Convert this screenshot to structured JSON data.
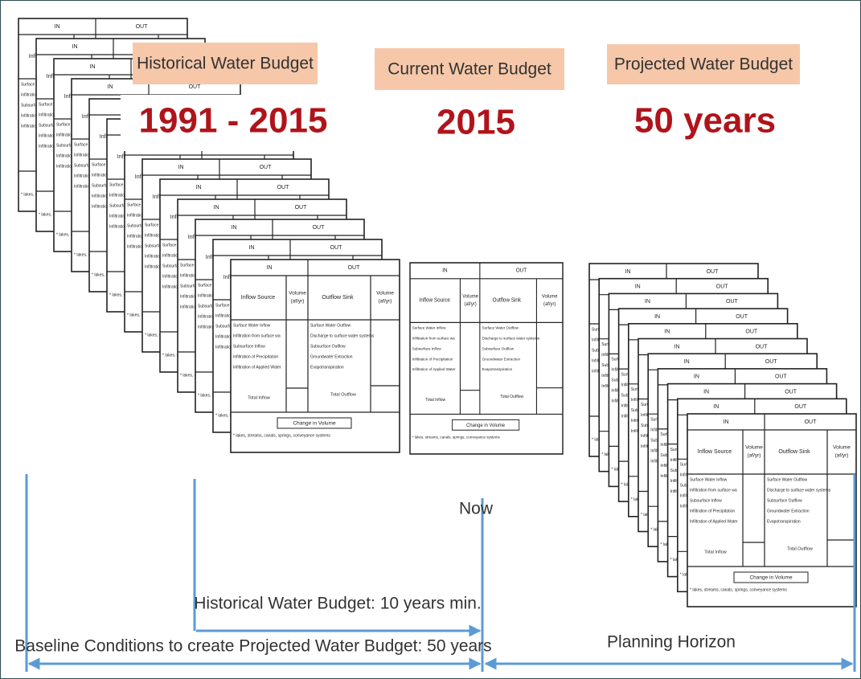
{
  "labels": {
    "historical": "Historical Water Budget",
    "current": "Current Water Budget",
    "projected": "Projected Water Budget"
  },
  "periods": {
    "historical": "1991 - 2015",
    "current": "2015",
    "projected": "50 years"
  },
  "budget_table": {
    "in": "IN",
    "out": "OUT",
    "inflow_source": "Inflow Source",
    "volume": [
      "Volume",
      "(af/yr)"
    ],
    "outflow_sink": "Outflow Sink",
    "inflows": [
      "Surface Water Inflow",
      "Infiltration from surface wa",
      "Subsurface Inflow",
      "Infiltration of Precipitation",
      "Infiltration of Applied Water"
    ],
    "outflows": [
      "Surface Water Outflow",
      "Discharge to surface water systems",
      "Subsurface Outflow",
      "Groundwater Extraction",
      "Evapotranspiration"
    ],
    "total_inflow": "Total Inflow",
    "total_outflow": "Total Outflow",
    "change": "Change in Volume",
    "footnote": "* lakes, streams, canals, springs, conveyance systems"
  },
  "timeline": {
    "now": "Now",
    "historical_span": "Historical Water Budget: 10 years min.",
    "baseline": "Baseline Conditions to create Projected Water Budget: 50 years",
    "planning": "Planning Horizon"
  }
}
